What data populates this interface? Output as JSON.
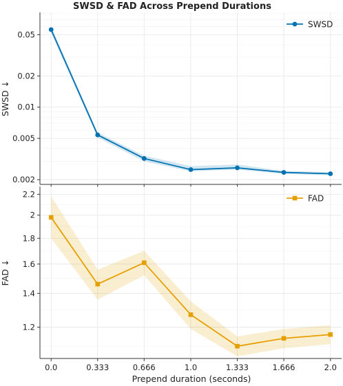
{
  "chart_data": {
    "type": "line",
    "title": "SWSD & FAD Across Prepend Durations",
    "xlabel": "Prepend duration (seconds)",
    "x": [
      0.0,
      0.333,
      0.666,
      1.0,
      1.333,
      1.666,
      2.0
    ],
    "x_tick_labels": [
      "0.0",
      "0.333",
      "0.666",
      "1.0",
      "1.333",
      "1.666",
      "2.0"
    ],
    "panels": [
      {
        "ylabel": "SWSD ↓",
        "yscale": "log",
        "ylim": [
          0.0018,
          0.082
        ],
        "y_ticks": [
          0.002,
          0.005,
          0.01,
          0.02,
          0.05
        ],
        "y_tick_labels": [
          "0.002",
          "0.005",
          "0.01",
          "0.02",
          "0.05"
        ],
        "grid": true,
        "legend_position": "top-right",
        "series": [
          {
            "name": "SWSD",
            "color": "#0072B2",
            "marker": "circle",
            "values": [
              0.056,
              0.0054,
              0.0032,
              0.0025,
              0.0026,
              0.00235,
              0.00228
            ],
            "band_lower": [
              0.052,
              0.0051,
              0.003,
              0.0024,
              0.0025,
              0.00227,
              0.00221
            ],
            "band_upper": [
              0.06,
              0.0057,
              0.0034,
              0.0027,
              0.0028,
              0.00243,
              0.00236
            ]
          }
        ]
      },
      {
        "ylabel": "FAD ↓",
        "yscale": "log",
        "ylim": [
          1.04,
          2.28
        ],
        "y_ticks": [
          1.2,
          1.4,
          1.6,
          1.8,
          2.0,
          2.2
        ],
        "y_tick_labels": [
          "1.2",
          "1.4",
          "1.6",
          "1.8",
          "2",
          "2.2"
        ],
        "grid": true,
        "legend_position": "top-right",
        "series": [
          {
            "name": "FAD",
            "color": "#E69F00",
            "marker": "square",
            "values": [
              1.98,
              1.46,
              1.61,
              1.27,
              1.1,
              1.14,
              1.16
            ],
            "band_lower": [
              1.8,
              1.36,
              1.52,
              1.19,
              1.05,
              1.09,
              1.11
            ],
            "band_upper": [
              2.18,
              1.56,
              1.7,
              1.35,
              1.15,
              1.19,
              1.21
            ]
          }
        ]
      }
    ]
  }
}
